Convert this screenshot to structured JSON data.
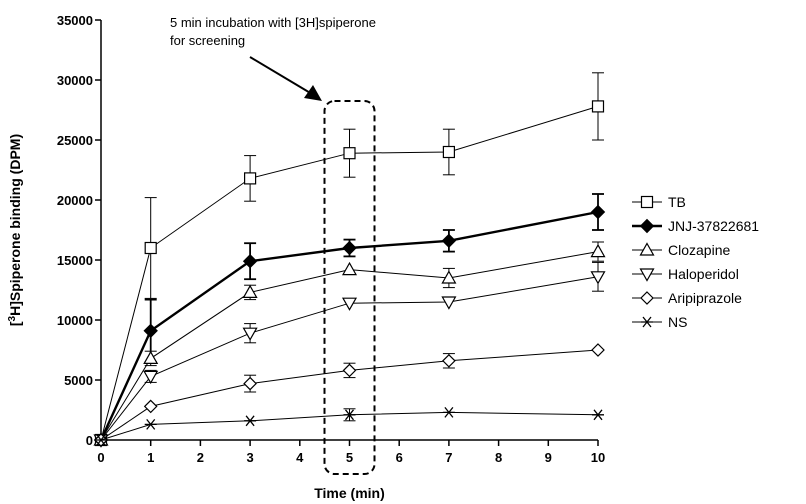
{
  "chart_data": {
    "type": "line",
    "xlabel": "Time (min)",
    "ylabel_parts": {
      "before": "[",
      "sup": "3",
      "after": "H]Spiperone binding (DPM)"
    },
    "xlim": [
      0,
      10
    ],
    "ylim": [
      0,
      35000
    ],
    "x_ticks": [
      0,
      1,
      2,
      3,
      4,
      5,
      6,
      7,
      8,
      9,
      10
    ],
    "y_ticks": [
      0,
      5000,
      10000,
      15000,
      20000,
      25000,
      30000,
      35000
    ],
    "annotation": {
      "lines": [
        "5 min incubation with [3H]spiperone",
        "for screening"
      ],
      "highlight_x": 5
    },
    "series": [
      {
        "name": "TB",
        "marker": "square-open",
        "bold": false,
        "x": [
          0,
          1,
          3,
          5,
          7,
          10
        ],
        "y": [
          0,
          16000,
          21800,
          23900,
          24000,
          27800
        ],
        "err": [
          0,
          4200,
          1900,
          2000,
          1900,
          2800
        ]
      },
      {
        "name": "JNJ-37822681",
        "marker": "diamond-filled",
        "bold": true,
        "x": [
          0,
          1,
          3,
          5,
          7,
          10
        ],
        "y": [
          0,
          9100,
          14900,
          16000,
          16600,
          19000
        ],
        "err": [
          0,
          2600,
          1500,
          700,
          900,
          1500
        ]
      },
      {
        "name": "Clozapine",
        "marker": "triangle-up-open",
        "bold": false,
        "x": [
          0,
          1,
          3,
          5,
          7,
          10
        ],
        "y": [
          0,
          6800,
          12300,
          14200,
          13500,
          15700
        ],
        "err": [
          0,
          600,
          600,
          0,
          800,
          800
        ]
      },
      {
        "name": "Haloperidol",
        "marker": "triangle-down-open",
        "bold": false,
        "x": [
          0,
          1,
          3,
          5,
          7,
          10
        ],
        "y": [
          0,
          5300,
          8900,
          11400,
          11500,
          13600
        ],
        "err": [
          0,
          500,
          800,
          0,
          0,
          1200
        ]
      },
      {
        "name": "Aripiprazole",
        "marker": "diamond-open",
        "bold": false,
        "x": [
          0,
          1,
          3,
          5,
          7,
          10
        ],
        "y": [
          0,
          2800,
          4700,
          5800,
          6600,
          7500
        ],
        "err": [
          0,
          0,
          700,
          600,
          600,
          0
        ]
      },
      {
        "name": "NS",
        "marker": "star",
        "bold": false,
        "x": [
          0,
          1,
          3,
          5,
          7,
          10
        ],
        "y": [
          0,
          1300,
          1600,
          2100,
          2300,
          2100
        ],
        "err": [
          0,
          0,
          0,
          500,
          0,
          0
        ]
      }
    ]
  }
}
